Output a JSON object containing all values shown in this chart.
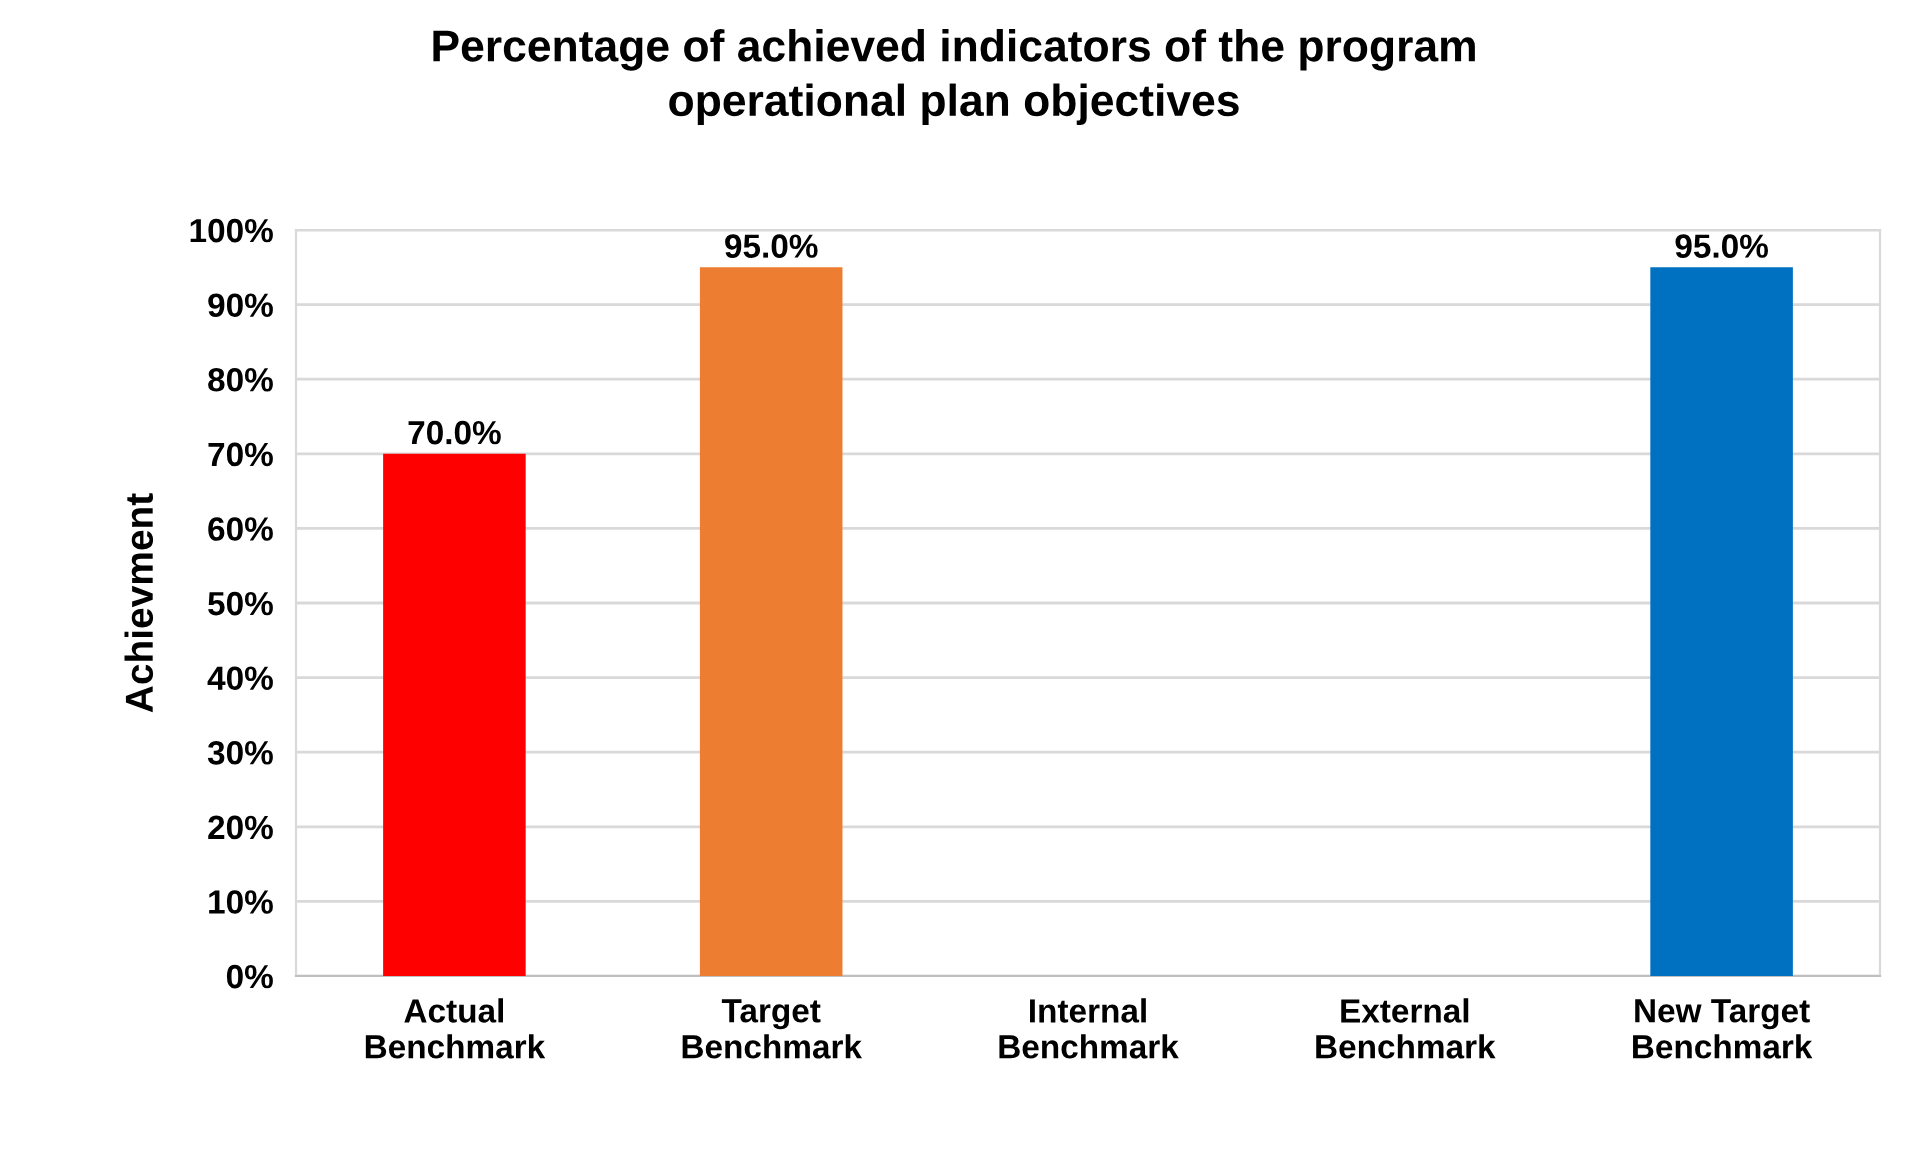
{
  "chart_data": {
    "type": "bar",
    "title": "Percentage of achieved indicators of the program\noperational plan objectives",
    "ylabel": "Achievment",
    "categories": [
      "Actual\nBenchmark",
      "Target\nBenchmark",
      "Internal\nBenchmark",
      "External\nBenchmark",
      "New Target\nBenchmark"
    ],
    "values": [
      70,
      95,
      null,
      null,
      95
    ],
    "colors": [
      "#ff0000",
      "#ed7d31",
      "#a5a5a5",
      "#ffc000",
      "#0070c0"
    ],
    "value_labels": [
      "70.0%",
      "95.0%",
      null,
      null,
      "95.0%"
    ],
    "ylim": [
      0,
      100
    ],
    "yticks": [
      {
        "value": 0,
        "label": "0%"
      },
      {
        "value": 10,
        "label": "10%"
      },
      {
        "value": 20,
        "label": "20%"
      },
      {
        "value": 30,
        "label": "30%"
      },
      {
        "value": 40,
        "label": "40%"
      },
      {
        "value": 50,
        "label": "50%"
      },
      {
        "value": 60,
        "label": "60%"
      },
      {
        "value": 70,
        "label": "70%"
      },
      {
        "value": 80,
        "label": "80%"
      },
      {
        "value": 90,
        "label": "90%"
      },
      {
        "value": 100,
        "label": "100%"
      }
    ],
    "grid": "y",
    "legend": false
  }
}
